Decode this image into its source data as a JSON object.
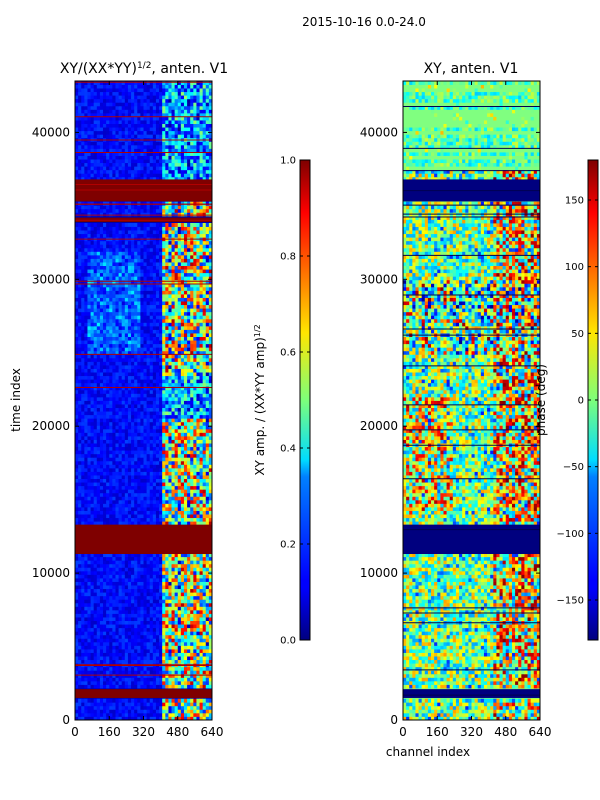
{
  "figure": {
    "suptitle": "2015-10-16 0.0-24.0"
  },
  "chart_data": [
    {
      "type": "heatmap",
      "title": "XY/(XX*YY)^1/2, anten. V1",
      "title_main": "XY/(XX*YY)",
      "title_sup": "1/2",
      "title_tail": ", anten. V1",
      "xlabel": "",
      "ylabel": "time index",
      "xlim": [
        0,
        640
      ],
      "ylim": [
        0,
        43500
      ],
      "xticks": [
        0,
        160,
        320,
        480,
        640
      ],
      "yticks": [
        0,
        10000,
        20000,
        30000,
        40000
      ],
      "xtick_labels": [
        "0",
        "160",
        "320",
        "480",
        "640"
      ],
      "ytick_labels": [
        "0",
        "10000",
        "20000",
        "30000",
        "40000"
      ],
      "colormap": "jet",
      "colorbar": {
        "label": "XY amp. / (XX*YY amp)^1/2",
        "label_main": "XY amp. / (XX*YY amp)",
        "label_sup": "1/2",
        "range": [
          0,
          1
        ],
        "ticks": [
          0.0,
          0.2,
          0.4,
          0.6,
          0.8,
          1.0
        ],
        "tick_labels": [
          "0.0",
          "0.2",
          "0.4",
          "0.6",
          "0.8",
          "1.0"
        ]
      },
      "saturated_bands": [
        [
          11300,
          13300
        ],
        [
          1500,
          2100
        ],
        [
          35300,
          36800
        ],
        [
          33900,
          34200
        ]
      ]
    },
    {
      "type": "heatmap",
      "title": "XY, anten. V1",
      "xlabel": "channel index",
      "ylabel": "",
      "xlim": [
        0,
        640
      ],
      "ylim": [
        0,
        43500
      ],
      "xticks": [
        0,
        160,
        320,
        480,
        640
      ],
      "yticks": [
        0,
        10000,
        20000,
        30000,
        40000
      ],
      "xtick_labels": [
        "0",
        "160",
        "320",
        "480",
        "640"
      ],
      "ytick_labels": [
        "0",
        "10000",
        "20000",
        "30000",
        "40000"
      ],
      "colormap": "jet",
      "colorbar": {
        "label": "phase (deg)",
        "range": [
          -180,
          180
        ],
        "ticks": [
          -150,
          -100,
          -50,
          0,
          50,
          100,
          150
        ],
        "tick_labels": [
          "−150",
          "−100",
          "−50",
          "0",
          "50",
          "100",
          "150"
        ]
      },
      "saturated_bands": [
        [
          11300,
          13300
        ],
        [
          1500,
          2100
        ],
        [
          35300,
          36800
        ]
      ]
    }
  ]
}
